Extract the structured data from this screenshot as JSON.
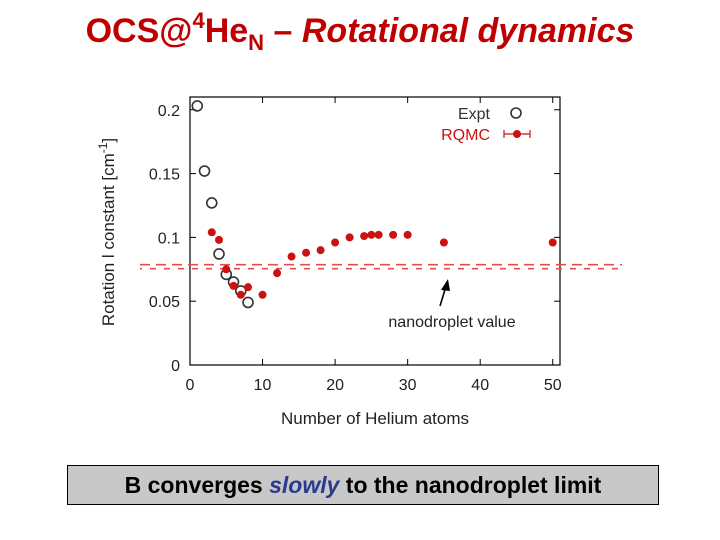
{
  "slide": {
    "title_prefix": "OCS@",
    "title_sup": "4",
    "title_mid": "He",
    "title_sub": "N",
    "title_suffix": " – ",
    "title_italic": "Rotational dynamics",
    "caption_before": "B converges ",
    "caption_em": "slowly",
    "caption_after": " to the nanodroplet limit",
    "title_color": "#c00000",
    "caption_em_color": "#2a3a8f",
    "caption_bg": "#c8c8c8"
  },
  "chart_data": {
    "type": "scatter",
    "xlabel": "Number of Helium atoms",
    "ylabel": "Rotational constant [cm-1]",
    "ylabel_visible": "Rotation    l constant [cm",
    "ylabel_sup": "-1",
    "ylabel_close": "]",
    "xlim": [
      0,
      51
    ],
    "ylim": [
      0,
      0.21
    ],
    "xticks": [
      0,
      10,
      20,
      30,
      40,
      50
    ],
    "xtick_labels": [
      "0",
      "10",
      "20",
      "30",
      "40",
      "50"
    ],
    "yticks": [
      0,
      0.05,
      0.1,
      0.15,
      0.2
    ],
    "ytick_labels": [
      "0",
      "0.05",
      "0.1",
      "0.15",
      "0.2"
    ],
    "legend_position": "top-right",
    "annotation": "nanodroplet value",
    "nanodroplet_value": 0.077,
    "series": [
      {
        "name": "Expt",
        "marker": "open-circle",
        "color": "#333333",
        "x": [
          1,
          2,
          3,
          4,
          5,
          6,
          7,
          8
        ],
        "y": [
          0.203,
          0.152,
          0.127,
          0.087,
          0.071,
          0.065,
          0.058,
          0.049
        ]
      },
      {
        "name": "RQMC",
        "marker": "filled-circle-errorbar",
        "color": "#cc1111",
        "x": [
          3,
          4,
          5,
          6,
          7,
          8,
          10,
          12,
          14,
          16,
          18,
          20,
          22,
          24,
          25,
          26,
          28,
          30,
          35,
          50
        ],
        "y": [
          0.104,
          0.098,
          0.075,
          0.062,
          0.055,
          0.061,
          0.055,
          0.072,
          0.085,
          0.088,
          0.09,
          0.096,
          0.1,
          0.101,
          0.102,
          0.102,
          0.102,
          0.102,
          0.096,
          0.096
        ]
      }
    ]
  }
}
